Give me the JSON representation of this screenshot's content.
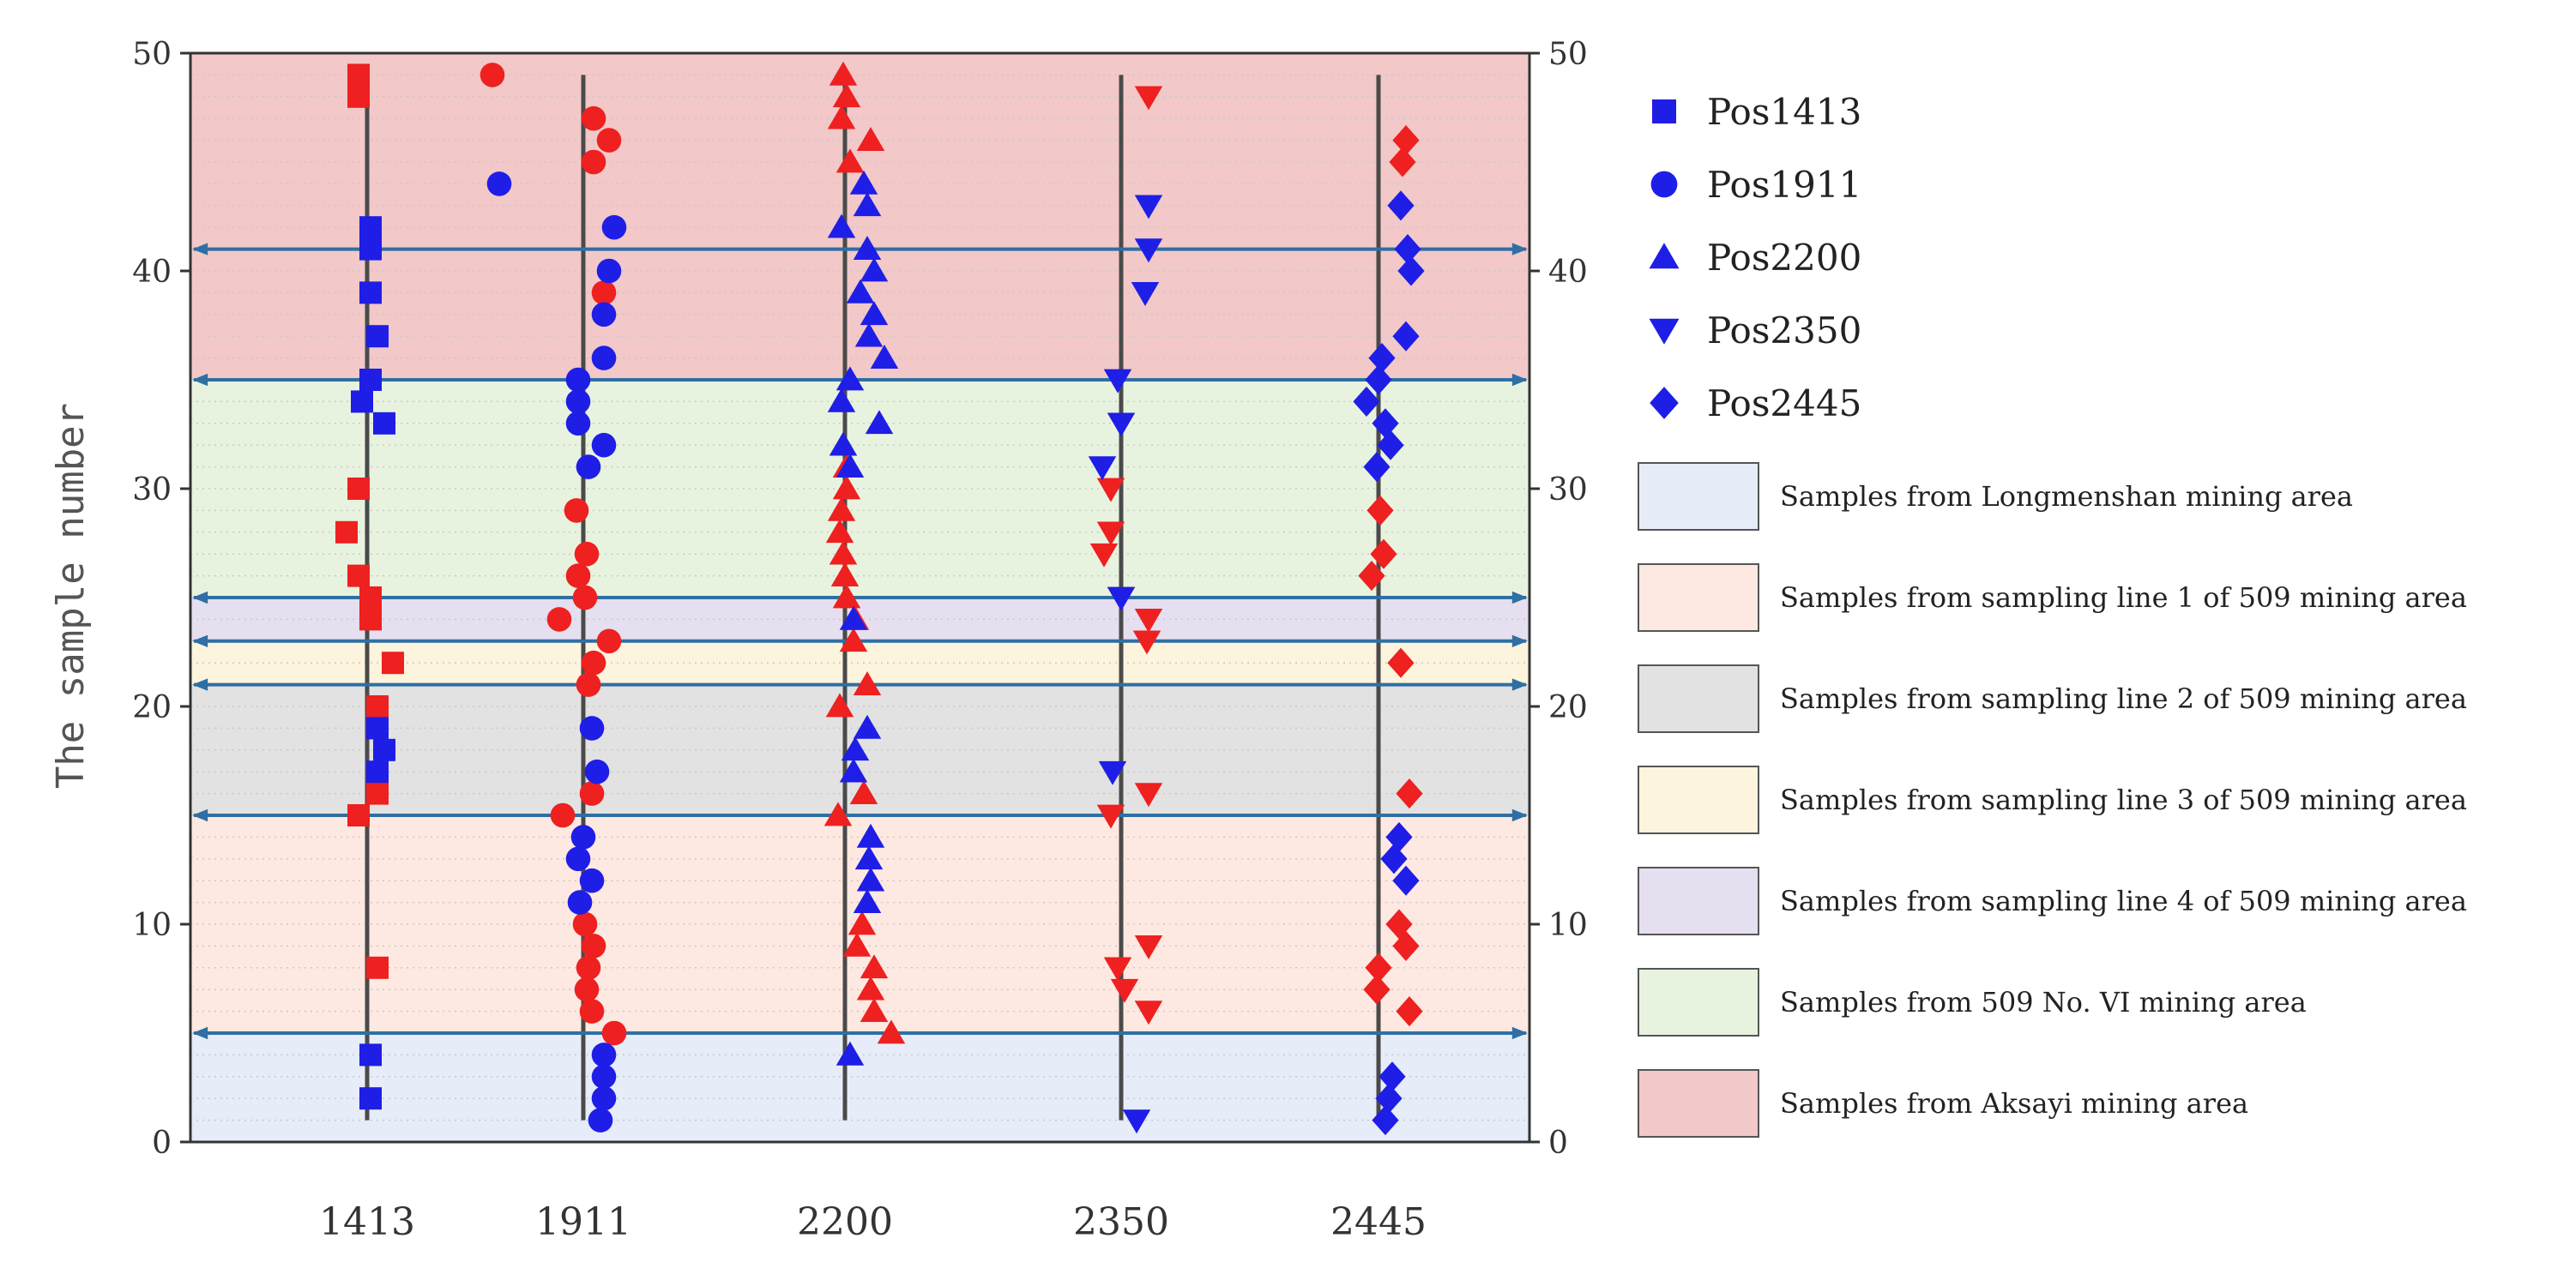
{
  "chart_data": {
    "type": "scatter",
    "ylabel": "The sample number",
    "ylim": [
      0,
      50
    ],
    "yticks": [
      0,
      10,
      20,
      30,
      40,
      50
    ],
    "grid": "horizontal dotted at every sample number",
    "categories": [
      "1413",
      "1911",
      "2200",
      "2350",
      "2445"
    ],
    "series": [
      {
        "name": "Pos1413",
        "marker": "square",
        "category": "1413"
      },
      {
        "name": "Pos1911",
        "marker": "circle",
        "category": "1911"
      },
      {
        "name": "Pos2200",
        "marker": "triangle-up",
        "category": "2200"
      },
      {
        "name": "Pos2350",
        "marker": "triangle-down",
        "category": "2350"
      },
      {
        "name": "Pos2445",
        "marker": "diamond",
        "category": "2445"
      }
    ],
    "colors": {
      "blue": "#1e1ee6",
      "red": "#ee2020"
    },
    "regions": [
      {
        "label": "Samples from Longmenshan mining area",
        "from": 0,
        "to": 5,
        "color": "#e6ecf8"
      },
      {
        "label": "Samples from sampling line 1 of 509 mining area",
        "from": 5,
        "to": 15,
        "color": "#fde9e1"
      },
      {
        "label": "Samples from sampling line 2 of 509 mining area",
        "from": 15,
        "to": 21,
        "color": "#e2e2e2"
      },
      {
        "label": "Samples from sampling line 3 of 509 mining area",
        "from": 21,
        "to": 23,
        "color": "#fdf4dd"
      },
      {
        "label": "Samples from sampling line 4 of 509 mining area",
        "from": 23,
        "to": 25,
        "color": "#e5dff0"
      },
      {
        "label": "Samples from 509 No. VI mining area",
        "from": 25,
        "to": 35,
        "color": "#e8f3df"
      },
      {
        "label": "Samples from Aksayi mining area",
        "from": 35,
        "to": 50,
        "color": "#f2c8c8"
      }
    ],
    "boundaries": [
      5,
      15,
      21,
      23,
      25,
      35,
      41
    ],
    "points": {
      "1413": {
        "red": [
          [
            49,
            -0.5
          ],
          [
            48.5,
            -0.5
          ],
          [
            48,
            -0.5
          ],
          [
            30,
            -0.5
          ],
          [
            28,
            -1.2
          ],
          [
            26,
            -0.5
          ],
          [
            25,
            0.2
          ],
          [
            24,
            0.2
          ],
          [
            22,
            1.5
          ],
          [
            20,
            0.6
          ],
          [
            16,
            0.6
          ],
          [
            15,
            -0.5
          ],
          [
            8,
            0.6
          ]
        ],
        "blue": [
          [
            42,
            0.2
          ],
          [
            41.5,
            0.2
          ],
          [
            41,
            0.2
          ],
          [
            39,
            0.2
          ],
          [
            37,
            0.6
          ],
          [
            35,
            0.2
          ],
          [
            34,
            -0.3
          ],
          [
            33,
            1.0
          ],
          [
            19,
            0.6
          ],
          [
            18,
            1.0
          ],
          [
            17,
            0.6
          ],
          [
            4,
            0.2
          ],
          [
            2,
            0.2
          ]
        ]
      },
      "1911": {
        "red": [
          [
            49,
            -5.3
          ],
          [
            47,
            0.6
          ],
          [
            46,
            1.5
          ],
          [
            45,
            0.6
          ],
          [
            39,
            1.2
          ],
          [
            29,
            -0.4
          ],
          [
            27,
            0.2
          ],
          [
            26,
            -0.3
          ],
          [
            25,
            0.1
          ],
          [
            24,
            -1.4
          ],
          [
            23,
            1.5
          ],
          [
            22,
            0.6
          ],
          [
            21,
            0.3
          ],
          [
            16,
            0.5
          ],
          [
            15,
            -1.2
          ],
          [
            10,
            0.1
          ],
          [
            9,
            0.6
          ],
          [
            8,
            0.3
          ],
          [
            7,
            0.2
          ],
          [
            6,
            0.5
          ],
          [
            5,
            1.8
          ]
        ],
        "blue": [
          [
            44,
            -4.9
          ],
          [
            42,
            1.8
          ],
          [
            40,
            1.5
          ],
          [
            38,
            1.2
          ],
          [
            36,
            1.2
          ],
          [
            35,
            -0.3
          ],
          [
            34,
            -0.3
          ],
          [
            33,
            -0.3
          ],
          [
            32,
            1.2
          ],
          [
            31,
            0.3
          ],
          [
            19,
            0.5
          ],
          [
            17,
            0.8
          ],
          [
            14,
            0.0
          ],
          [
            13,
            -0.3
          ],
          [
            12,
            0.5
          ],
          [
            11,
            -0.2
          ],
          [
            4,
            1.2
          ],
          [
            3,
            1.2
          ],
          [
            2,
            1.2
          ],
          [
            1,
            1.0
          ]
        ]
      },
      "2200": {
        "red": [
          [
            49,
            -0.1
          ],
          [
            48,
            0.1
          ],
          [
            47,
            -0.2
          ],
          [
            46,
            1.5
          ],
          [
            45,
            0.3
          ],
          [
            31,
            0.1
          ],
          [
            30,
            0.1
          ],
          [
            29,
            -0.2
          ],
          [
            28,
            -0.3
          ],
          [
            27,
            -0.1
          ],
          [
            26,
            0.0
          ],
          [
            25,
            0.1
          ],
          [
            24,
            0.6
          ],
          [
            23,
            0.5
          ],
          [
            21,
            1.3
          ],
          [
            20,
            -0.3
          ],
          [
            16,
            1.1
          ],
          [
            15,
            -0.4
          ],
          [
            10,
            1.0
          ],
          [
            9,
            0.7
          ],
          [
            8,
            1.7
          ],
          [
            7,
            1.5
          ],
          [
            6,
            1.7
          ],
          [
            5,
            2.7
          ]
        ],
        "blue": [
          [
            44,
            1.1
          ],
          [
            43,
            1.3
          ],
          [
            42,
            -0.2
          ],
          [
            41,
            1.3
          ],
          [
            40,
            1.7
          ],
          [
            39,
            0.9
          ],
          [
            38,
            1.7
          ],
          [
            37,
            1.4
          ],
          [
            36,
            2.3
          ],
          [
            35,
            0.3
          ],
          [
            34,
            -0.2
          ],
          [
            33,
            2.0
          ],
          [
            32,
            -0.1
          ],
          [
            31,
            0.3
          ],
          [
            24,
            0.5
          ],
          [
            19,
            1.3
          ],
          [
            18,
            0.6
          ],
          [
            17,
            0.5
          ],
          [
            14,
            1.5
          ],
          [
            13,
            1.4
          ],
          [
            12,
            1.5
          ],
          [
            11,
            1.3
          ],
          [
            4,
            0.3
          ]
        ]
      },
      "2350": {
        "red": [
          [
            48,
            1.6
          ],
          [
            30,
            -0.6
          ],
          [
            28,
            -0.6
          ],
          [
            27,
            -1.0
          ],
          [
            25,
            0.0
          ],
          [
            24,
            1.6
          ],
          [
            23,
            1.5
          ],
          [
            16,
            1.6
          ],
          [
            15,
            -0.6
          ],
          [
            9,
            1.6
          ],
          [
            8,
            -0.2
          ],
          [
            7,
            0.2
          ],
          [
            6,
            1.6
          ]
        ],
        "blue": [
          [
            43,
            1.6
          ],
          [
            41,
            1.6
          ],
          [
            39,
            1.4
          ],
          [
            35,
            -0.2
          ],
          [
            33,
            0.0
          ],
          [
            31,
            -1.1
          ],
          [
            25,
            0.0
          ],
          [
            17,
            -0.5
          ],
          [
            1,
            0.9
          ]
        ]
      },
      "2445": {
        "red": [
          [
            46,
            1.6
          ],
          [
            45,
            1.4
          ],
          [
            29,
            0.1
          ],
          [
            27,
            0.3
          ],
          [
            26,
            -0.4
          ],
          [
            22,
            1.3
          ],
          [
            16,
            1.8
          ],
          [
            10,
            1.2
          ],
          [
            9,
            1.6
          ],
          [
            8,
            0.0
          ],
          [
            7,
            -0.1
          ],
          [
            6,
            1.8
          ]
        ],
        "blue": [
          [
            43,
            1.3
          ],
          [
            41,
            1.7
          ],
          [
            40,
            1.9
          ],
          [
            37,
            1.6
          ],
          [
            36,
            0.2
          ],
          [
            35,
            0.0
          ],
          [
            34,
            -0.7
          ],
          [
            33,
            0.4
          ],
          [
            32,
            0.7
          ],
          [
            31,
            -0.1
          ],
          [
            14,
            1.2
          ],
          [
            13,
            0.9
          ],
          [
            12,
            1.6
          ],
          [
            3,
            0.8
          ],
          [
            2,
            0.6
          ],
          [
            1,
            0.4
          ]
        ]
      }
    }
  },
  "legend": {
    "series_labels": [
      "Pos1413",
      "Pos1911",
      "Pos2200",
      "Pos2350",
      "Pos2445"
    ]
  }
}
